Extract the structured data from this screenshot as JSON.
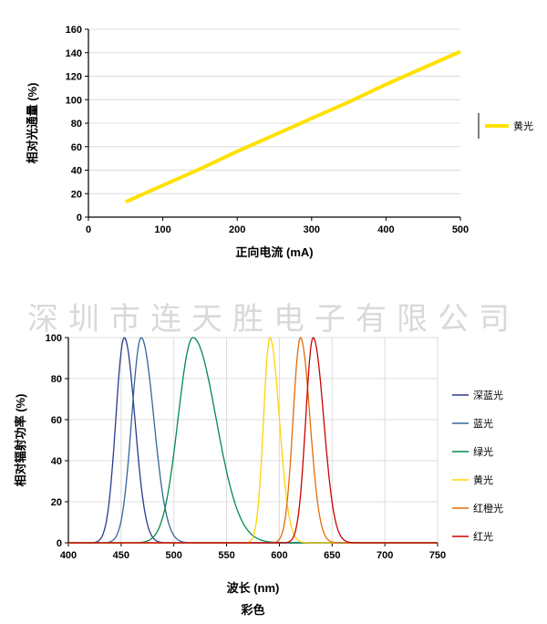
{
  "chart_data": [
    {
      "type": "line",
      "title": "",
      "xlabel": "正向电流 (mA)",
      "ylabel": "相对光通量 (%)",
      "xlim": [
        0,
        500
      ],
      "ylim": [
        0,
        160
      ],
      "xticks": [
        0,
        100,
        200,
        300,
        400,
        500
      ],
      "yticks": [
        0,
        20,
        40,
        60,
        80,
        100,
        120,
        140,
        160
      ],
      "grid": "horizontal",
      "legend_position": "right",
      "series": [
        {
          "name": "黄光",
          "color": "#FFE100",
          "line_width": 4,
          "x": [
            50,
            100,
            150,
            200,
            250,
            300,
            350,
            400,
            450,
            500
          ],
          "y": [
            13,
            27,
            41,
            56,
            70,
            84,
            98,
            113,
            127,
            141
          ]
        }
      ]
    },
    {
      "type": "line",
      "title": "",
      "watermark": "深圳市连天胜电子有限公司",
      "xlabel": "波长 (nm)",
      "footer": "彩色",
      "ylabel": "相对辐射功率 (%)",
      "xlim": [
        400,
        750
      ],
      "ylim": [
        0,
        100
      ],
      "xticks": [
        400,
        450,
        500,
        550,
        600,
        650,
        700,
        750
      ],
      "yticks": [
        0,
        20,
        40,
        60,
        80,
        100
      ],
      "grid": "both",
      "legend_position": "right",
      "series": [
        {
          "name": "深蓝光",
          "color": "#2B3A8C",
          "peak": 453,
          "sigma_left": 8,
          "sigma_right": 10,
          "amplitude": 100
        },
        {
          "name": "蓝光",
          "color": "#33669A",
          "peak": 469,
          "sigma_left": 9,
          "sigma_right": 12,
          "amplitude": 100
        },
        {
          "name": "绿光",
          "color": "#008A4C",
          "peak": 518,
          "sigma_left": 14,
          "sigma_right": 22,
          "amplitude": 100
        },
        {
          "name": "黄光",
          "color": "#FFD400",
          "peak": 591,
          "sigma_left": 6,
          "sigma_right": 9,
          "amplitude": 100
        },
        {
          "name": "红橙光",
          "color": "#E36C09",
          "peak": 620,
          "sigma_left": 7,
          "sigma_right": 9,
          "amplitude": 100
        },
        {
          "name": "红光",
          "color": "#CC0000",
          "peak": 632,
          "sigma_left": 7,
          "sigma_right": 10,
          "amplitude": 100
        }
      ]
    }
  ]
}
